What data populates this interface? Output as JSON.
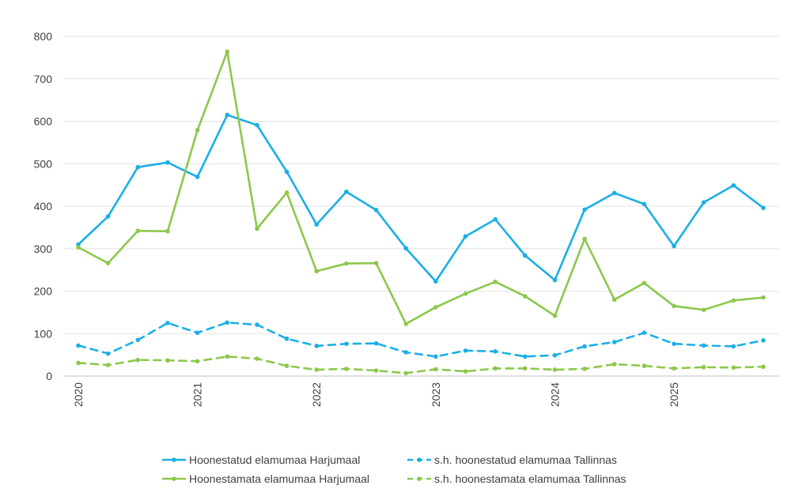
{
  "chart_data": {
    "type": "line",
    "title": "",
    "xlabel": "",
    "ylabel": "",
    "ylim": [
      0,
      800
    ],
    "yticks": [
      0,
      100,
      200,
      300,
      400,
      500,
      600,
      700,
      800
    ],
    "year_labels": [
      "2020",
      "2021",
      "2022",
      "2023",
      "2024",
      "2025"
    ],
    "year_start_index": [
      0,
      4,
      8,
      12,
      16,
      20
    ],
    "x": [
      "2020 Q1",
      "2020 Q2",
      "2020 Q3",
      "2020 Q4",
      "2021 Q1",
      "2021 Q2",
      "2021 Q3",
      "2021 Q4",
      "2022 Q1",
      "2022 Q2",
      "2022 Q3",
      "2022 Q4",
      "2023 Q1",
      "2023 Q2",
      "2023 Q3",
      "2023 Q4",
      "2024 Q1",
      "2024 Q2",
      "2024 Q3",
      "2024 Q4",
      "2025 Q1",
      "2025 Q2",
      "2025 Q3",
      "2025 Q4"
    ],
    "grid": true,
    "legend_position": "bottom",
    "series": [
      {
        "name": "Hoonestatud elamumaa Harjumaal",
        "color": "#1AAFE6",
        "dash": "solid",
        "values": [
          310,
          376,
          492,
          503,
          469,
          615,
          591,
          481,
          357,
          434,
          391,
          301,
          223,
          329,
          369,
          284,
          226,
          392,
          431,
          405,
          306,
          409,
          449,
          396
        ]
      },
      {
        "name": "s.h. hoonestatud elamumaa Tallinnas",
        "color": "#1AAFE6",
        "dash": "dashed",
        "values": [
          72,
          53,
          85,
          125,
          102,
          126,
          121,
          88,
          71,
          76,
          77,
          56,
          46,
          60,
          58,
          46,
          49,
          70,
          80,
          102,
          76,
          72,
          70,
          84
        ]
      },
      {
        "name": "Hoonestamata elamumaa Harjumaal",
        "color": "#8CC84B",
        "dash": "solid",
        "values": [
          303,
          266,
          342,
          341,
          579,
          764,
          347,
          432,
          247,
          265,
          266,
          123,
          162,
          194,
          222,
          188,
          142,
          323,
          180,
          219,
          165,
          156,
          178,
          185
        ]
      },
      {
        "name": "s.h. hoonestamata elamumaa Tallinnas",
        "color": "#8CC84B",
        "dash": "dashed",
        "values": [
          31,
          26,
          38,
          37,
          35,
          46,
          41,
          24,
          15,
          17,
          13,
          7,
          16,
          11,
          18,
          18,
          15,
          17,
          28,
          24,
          18,
          21,
          20,
          22
        ]
      }
    ]
  }
}
